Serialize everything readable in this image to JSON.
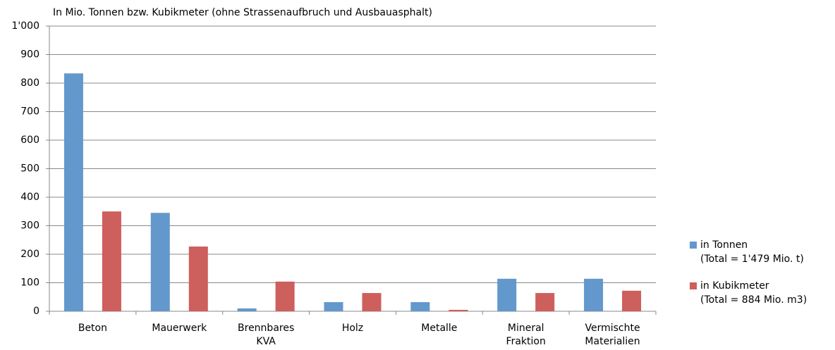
{
  "chart_data": {
    "type": "bar",
    "title": "In Mio. Tonnen bzw. Kubikmeter (ohne Strassenaufbruch und Ausbauasphalt)",
    "categories": [
      "Beton",
      "Mauerwerk",
      "Brennbares KVA",
      "Holz",
      "Metalle",
      "Mineral Fraktion",
      "Vermischte Materialien"
    ],
    "series": [
      {
        "name": "in Tonnen",
        "total_label": "(Total = 1'479 Mio. t)",
        "color": "#6398cc",
        "values": [
          834,
          345,
          10,
          32,
          32,
          114,
          114
        ]
      },
      {
        "name": "in Kubikmeter",
        "total_label": "(Total = 884 Mio. m3)",
        "color": "#cd5f5c",
        "values": [
          350,
          227,
          104,
          64,
          5,
          64,
          72
        ]
      }
    ],
    "ylim": [
      0,
      1000
    ],
    "yticks": [
      0,
      100,
      200,
      300,
      400,
      500,
      600,
      700,
      800,
      900,
      {
        "value": 1000,
        "label": "1'000"
      }
    ],
    "grid": true,
    "legend": "right"
  }
}
